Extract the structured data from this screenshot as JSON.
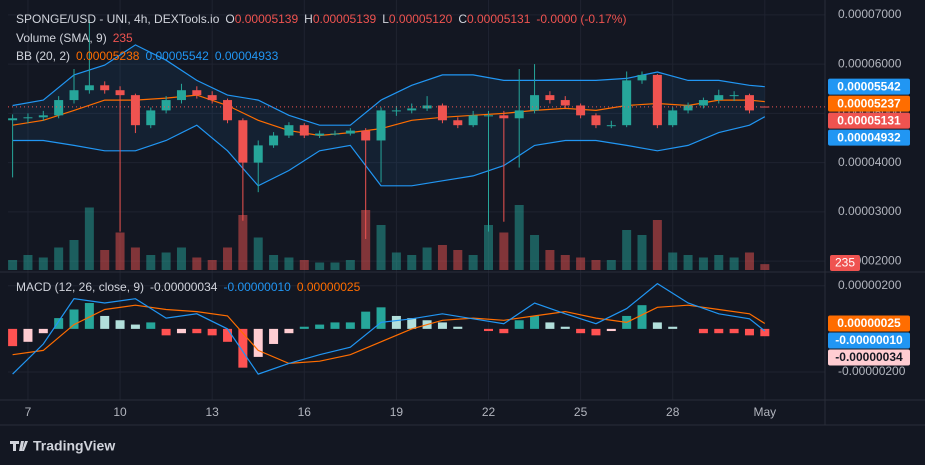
{
  "chart_data": [
    {
      "type": "candlestick",
      "legend": [
        [
          {
            "text": "SPONGE/USD - UNI, 4h, DEXTools.io",
            "color": "#d1d4dc"
          },
          {
            "text": "O",
            "color": "#d1d4dc"
          },
          {
            "text": "0.00005139",
            "color": "#ef5350"
          },
          {
            "text": "H",
            "color": "#d1d4dc"
          },
          {
            "text": "0.00005139",
            "color": "#ef5350"
          },
          {
            "text": "L",
            "color": "#d1d4dc"
          },
          {
            "text": "0.00005120",
            "color": "#ef5350"
          },
          {
            "text": "C",
            "color": "#d1d4dc"
          },
          {
            "text": "0.00005131",
            "color": "#ef5350"
          },
          {
            "text": "-0.0000 (-0.17%)",
            "color": "#ef5350"
          }
        ],
        [
          {
            "text": "Volume (SMA, 9)",
            "color": "#d1d4dc"
          },
          {
            "text": "235",
            "color": "#ef5350"
          }
        ],
        [
          {
            "text": "BB (20, 2)",
            "color": "#d1d4dc"
          },
          {
            "text": "0.00005238",
            "color": "#ff6d00"
          },
          {
            "text": "0.00005542",
            "color": "#2196f3"
          },
          {
            "text": "0.00004933",
            "color": "#2196f3"
          }
        ]
      ],
      "x": [
        6.5,
        7,
        7.5,
        8,
        8.5,
        9,
        9.5,
        10,
        10.5,
        11,
        11.5,
        12,
        12.5,
        13,
        13.5,
        14,
        14.5,
        15,
        15.5,
        16,
        16.5,
        17,
        17.5,
        18,
        18.5,
        19,
        19.5,
        20,
        20.5,
        21,
        21.5,
        22,
        22.5,
        23,
        23.5,
        24,
        24.5,
        25,
        25.5,
        26,
        26.5,
        27,
        27.5,
        28,
        28.5,
        29,
        29.5,
        30,
        30.5,
        31
      ],
      "open": [
        4.86e-05,
        4.9e-05,
        4.92e-05,
        4.96e-05,
        5.27e-05,
        5.47e-05,
        5.57e-05,
        5.47e-05,
        5.37e-05,
        4.76e-05,
        5.06e-05,
        5.27e-05,
        5.47e-05,
        5.37e-05,
        5.27e-05,
        4.86e-05,
        4e-05,
        4.35e-05,
        4.55e-05,
        4.76e-05,
        4.55e-05,
        4.59e-05,
        4.59e-05,
        4.65e-05,
        4.45e-05,
        5.06e-05,
        5.06e-05,
        5.1e-05,
        5.16e-05,
        4.86e-05,
        4.76e-05,
        4.96e-05,
        4.96e-05,
        4.9e-05,
        5.06e-05,
        5.37e-05,
        5.27e-05,
        5.16e-05,
        4.96e-05,
        4.76e-05,
        4.76e-05,
        5.67e-05,
        5.78e-05,
        4.76e-05,
        5.06e-05,
        5.16e-05,
        5.27e-05,
        5.37e-05,
        5.37e-05,
        5.139e-05
      ],
      "high": [
        4.98e-05,
        5e-05,
        5.05e-05,
        5.35e-05,
        5.9e-05,
        6.9e-05,
        5.65e-05,
        5.55e-05,
        5.4e-05,
        5.12e-05,
        5.35e-05,
        5.6e-05,
        5.55e-05,
        5.45e-05,
        5.3e-05,
        4.9e-05,
        4.45e-05,
        4.62e-05,
        4.82e-05,
        4.8e-05,
        4.65e-05,
        4.65e-05,
        4.7e-05,
        4.7e-05,
        5.12e-05,
        5.15e-05,
        5.2e-05,
        5.35e-05,
        5.2e-05,
        4.92e-05,
        5.05e-05,
        5.05e-05,
        5.05e-05,
        5.9e-05,
        6e-05,
        5.45e-05,
        5.35e-05,
        5.2e-05,
        5e-05,
        4.85e-05,
        5.85e-05,
        5.85e-05,
        5.8e-05,
        5.12e-05,
        5.22e-05,
        5.32e-05,
        5.48e-05,
        5.45e-05,
        5.4e-05,
        5.139e-05
      ],
      "low": [
        3.7e-05,
        4.8e-05,
        4.85e-05,
        4.9e-05,
        5.2e-05,
        5.4e-05,
        5.4e-05,
        2.6e-05,
        4.6e-05,
        4.7e-05,
        5e-05,
        5.2e-05,
        5.3e-05,
        5.2e-05,
        4.8e-05,
        2.82e-05,
        3.4e-05,
        4.3e-05,
        4.5e-05,
        4.5e-05,
        4.5e-05,
        4.55e-05,
        4.55e-05,
        2.45e-05,
        3.6e-05,
        4.95e-05,
        5e-05,
        5.05e-05,
        4.8e-05,
        4.7e-05,
        4.72e-05,
        2.6e-05,
        2.8e-05,
        3.9e-05,
        5e-05,
        5.2e-05,
        5.1e-05,
        4.9e-05,
        4.7e-05,
        4.7e-05,
        4.72e-05,
        5.6e-05,
        4.7e-05,
        4.72e-05,
        5e-05,
        5.1e-05,
        5.2e-05,
        5.25e-05,
        5e-05,
        5.12e-05
      ],
      "close": [
        4.9e-05,
        4.92e-05,
        4.96e-05,
        5.27e-05,
        5.47e-05,
        5.57e-05,
        5.47e-05,
        5.37e-05,
        4.76e-05,
        5.06e-05,
        5.27e-05,
        5.47e-05,
        5.37e-05,
        5.27e-05,
        4.86e-05,
        4e-05,
        4.35e-05,
        4.55e-05,
        4.76e-05,
        4.55e-05,
        4.59e-05,
        4.59e-05,
        4.65e-05,
        4.45e-05,
        5.06e-05,
        5.06e-05,
        5.1e-05,
        5.16e-05,
        4.86e-05,
        4.76e-05,
        4.96e-05,
        4.96e-05,
        4.9e-05,
        5.06e-05,
        5.37e-05,
        5.27e-05,
        5.16e-05,
        4.96e-05,
        4.76e-05,
        4.76e-05,
        5.67e-05,
        5.78e-05,
        4.76e-05,
        5.06e-05,
        5.16e-05,
        5.27e-05,
        5.37e-05,
        5.37e-05,
        5.06e-05,
        5.131e-05
      ],
      "up_color": "#26a69a",
      "down_color": "#ef5350",
      "volume": {
        "values": [
          400,
          600,
          500,
          900,
          1200,
          2500,
          800,
          1500,
          900,
          600,
          700,
          900,
          500,
          400,
          900,
          2200,
          1300,
          600,
          500,
          400,
          300,
          300,
          400,
          2400,
          1800,
          700,
          600,
          900,
          1000,
          800,
          600,
          1800,
          1500,
          2600,
          1400,
          800,
          600,
          500,
          400,
          400,
          1600,
          1400,
          2000,
          700,
          600,
          500,
          600,
          500,
          700,
          235
        ],
        "vlim": [
          0,
          4000
        ],
        "up_color": "rgba(38,166,154,0.5)",
        "down_color": "rgba(239,83,80,0.5)"
      },
      "bands": {
        "x": [
          6.5,
          7.5,
          8.5,
          9.5,
          10.5,
          11.5,
          12.5,
          13.5,
          14.5,
          15.5,
          16.5,
          17.5,
          18.5,
          19.5,
          20.5,
          21.5,
          22.5,
          23.5,
          24.5,
          25.5,
          26.5,
          27.5,
          28.5,
          29.5,
          30.5,
          31
        ],
        "upper": [
          5.16e-05,
          5.27e-05,
          5.78e-05,
          5.98e-05,
          6.39e-05,
          6.08e-05,
          5.67e-05,
          5.37e-05,
          5.27e-05,
          4.96e-05,
          4.76e-05,
          4.76e-05,
          5.27e-05,
          5.57e-05,
          5.78e-05,
          5.78e-05,
          5.67e-05,
          5.67e-05,
          5.67e-05,
          5.67e-05,
          5.71e-05,
          5.84e-05,
          5.67e-05,
          5.67e-05,
          5.57e-05,
          5.542e-05
        ],
        "middle": [
          4.76e-05,
          4.86e-05,
          5.06e-05,
          5.27e-05,
          5.27e-05,
          5.31e-05,
          5.37e-05,
          5.16e-05,
          4.86e-05,
          4.65e-05,
          4.55e-05,
          4.61e-05,
          4.69e-05,
          4.86e-05,
          4.92e-05,
          4.96e-05,
          5e-05,
          5.06e-05,
          5.1e-05,
          5.06e-05,
          5.16e-05,
          5.2e-05,
          5.16e-05,
          5.27e-05,
          5.27e-05,
          5.238e-05
        ],
        "lower": [
          4.45e-05,
          4.45e-05,
          4.35e-05,
          4.24e-05,
          4.24e-05,
          4.45e-05,
          4.76e-05,
          4.24e-05,
          3.53e-05,
          3.84e-05,
          4.24e-05,
          4.35e-05,
          3.53e-05,
          3.53e-05,
          3.63e-05,
          3.73e-05,
          3.94e-05,
          4.35e-05,
          4.45e-05,
          4.45e-05,
          4.35e-05,
          4.24e-05,
          4.35e-05,
          4.61e-05,
          4.76e-05,
          4.933e-05
        ],
        "band_color": "#2196f3",
        "middle_color": "#ff6d00",
        "fill": "rgba(33,150,243,0.08)"
      },
      "badges": [
        {
          "value": 5.542e-05,
          "label": "0.00005542",
          "color": "#2196f3"
        },
        {
          "value": 5.237e-05,
          "label": "0.00005237",
          "color": "#ff6d00"
        },
        {
          "value": 5.131e-05,
          "label": "0.00005131",
          "color": "#ef5350"
        },
        {
          "value": 4.932e-05,
          "label": "0.00004932",
          "color": "#2196f3"
        }
      ],
      "ylim": [
        1.82e-05,
        7.2e-05
      ],
      "yticks": [
        {
          "value": 2e-05,
          "label": "0.00002000"
        },
        {
          "value": 3e-05,
          "label": "0.00003000"
        },
        {
          "value": 4e-05,
          "label": "0.00004000"
        },
        {
          "value": 5e-05,
          "label": "0.00005000"
        },
        {
          "value": 6e-05,
          "label": "0.00006000"
        },
        {
          "value": 7e-05,
          "label": "0.00007000"
        }
      ],
      "grid": true
    },
    {
      "type": "macd",
      "legend": [
        [
          {
            "text": "MACD (12, 26, close, 9)",
            "color": "#d1d4dc"
          },
          {
            "text": "-0.00000034",
            "color": "#d1d4dc"
          },
          {
            "text": "-0.00000010",
            "color": "#2196f3"
          },
          {
            "text": "0.00000025",
            "color": "#ff6d00"
          }
        ]
      ],
      "histogram": [
        -8e-07,
        -6e-07,
        -2e-07,
        5e-07,
        9e-07,
        1.2e-06,
        6e-07,
        4e-07,
        2e-07,
        3e-07,
        -3e-07,
        -2e-07,
        -2e-07,
        -3e-07,
        -6e-07,
        -1.8e-06,
        -1.3e-06,
        -7e-07,
        -2e-07,
        1e-07,
        2e-07,
        3e-07,
        3e-07,
        8e-07,
        1e-06,
        6e-07,
        5e-07,
        4e-07,
        3e-07,
        1e-07,
        0,
        -1e-07,
        -2e-07,
        4e-07,
        6e-07,
        3e-07,
        1e-07,
        -2e-07,
        -3e-07,
        -1e-07,
        6e-07,
        1.1e-06,
        3e-07,
        1e-07,
        0,
        -2e-07,
        -2e-07,
        -2e-07,
        -3e-07,
        -3.4e-07
      ],
      "hist_colors": [
        "#26a69a",
        "#b2dfdb",
        "#ff5252",
        "#ffcdd2"
      ],
      "macd": [
        -2.1e-06,
        -7e-07,
        1.4e-06,
        1.2e-06,
        1.4e-06,
        5e-07,
        7e-07,
        0,
        -2.1e-06,
        -1.6e-06,
        -1.2e-06,
        -8.5e-07,
        3e-07,
        4.7e-07,
        7e-07,
        4.7e-07,
        2.4e-07,
        1.2e-06,
        7e-07,
        2.4e-07,
        9.4e-07,
        2.1e-06,
        1.2e-06,
        7e-07,
        4.7e-07,
        -1e-07
      ],
      "signal": [
        -1.2e-06,
        -1e-06,
        2e-07,
        9e-07,
        1.1e-06,
        9e-07,
        8e-07,
        6e-07,
        -1e-06,
        -1.6e-06,
        -1.5e-06,
        -1.2e-06,
        -6e-07,
        0,
        4e-07,
        5e-07,
        4e-07,
        6e-07,
        8e-07,
        5e-07,
        3e-07,
        1e-06,
        1.1e-06,
        9e-07,
        7e-07,
        2.5e-07
      ],
      "macd_color": "#2196f3",
      "signal_color": "#ff6d00",
      "badges": [
        {
          "value": 2.5e-07,
          "label": "0.00000025",
          "color": "#ff6d00"
        },
        {
          "value": -1e-07,
          "label": "-0.00000010",
          "color": "#2196f3"
        },
        {
          "value": -3.4e-07,
          "label": "-0.00000034",
          "color": "#ffcdd2"
        }
      ],
      "ylim": [
        -3.3e-06,
        2.5e-06
      ],
      "yticks": [
        {
          "value": -2e-06,
          "label": "-0.00000200"
        },
        {
          "value": 2e-06,
          "label": "0.00000200"
        }
      ],
      "xlim": [
        6.35,
        32.96
      ],
      "xticks": [
        7,
        10,
        13,
        16,
        19,
        22,
        25,
        28,
        {
          "value": 31,
          "label": "May"
        }
      ],
      "grid": true
    }
  ],
  "branding": "TradingView"
}
